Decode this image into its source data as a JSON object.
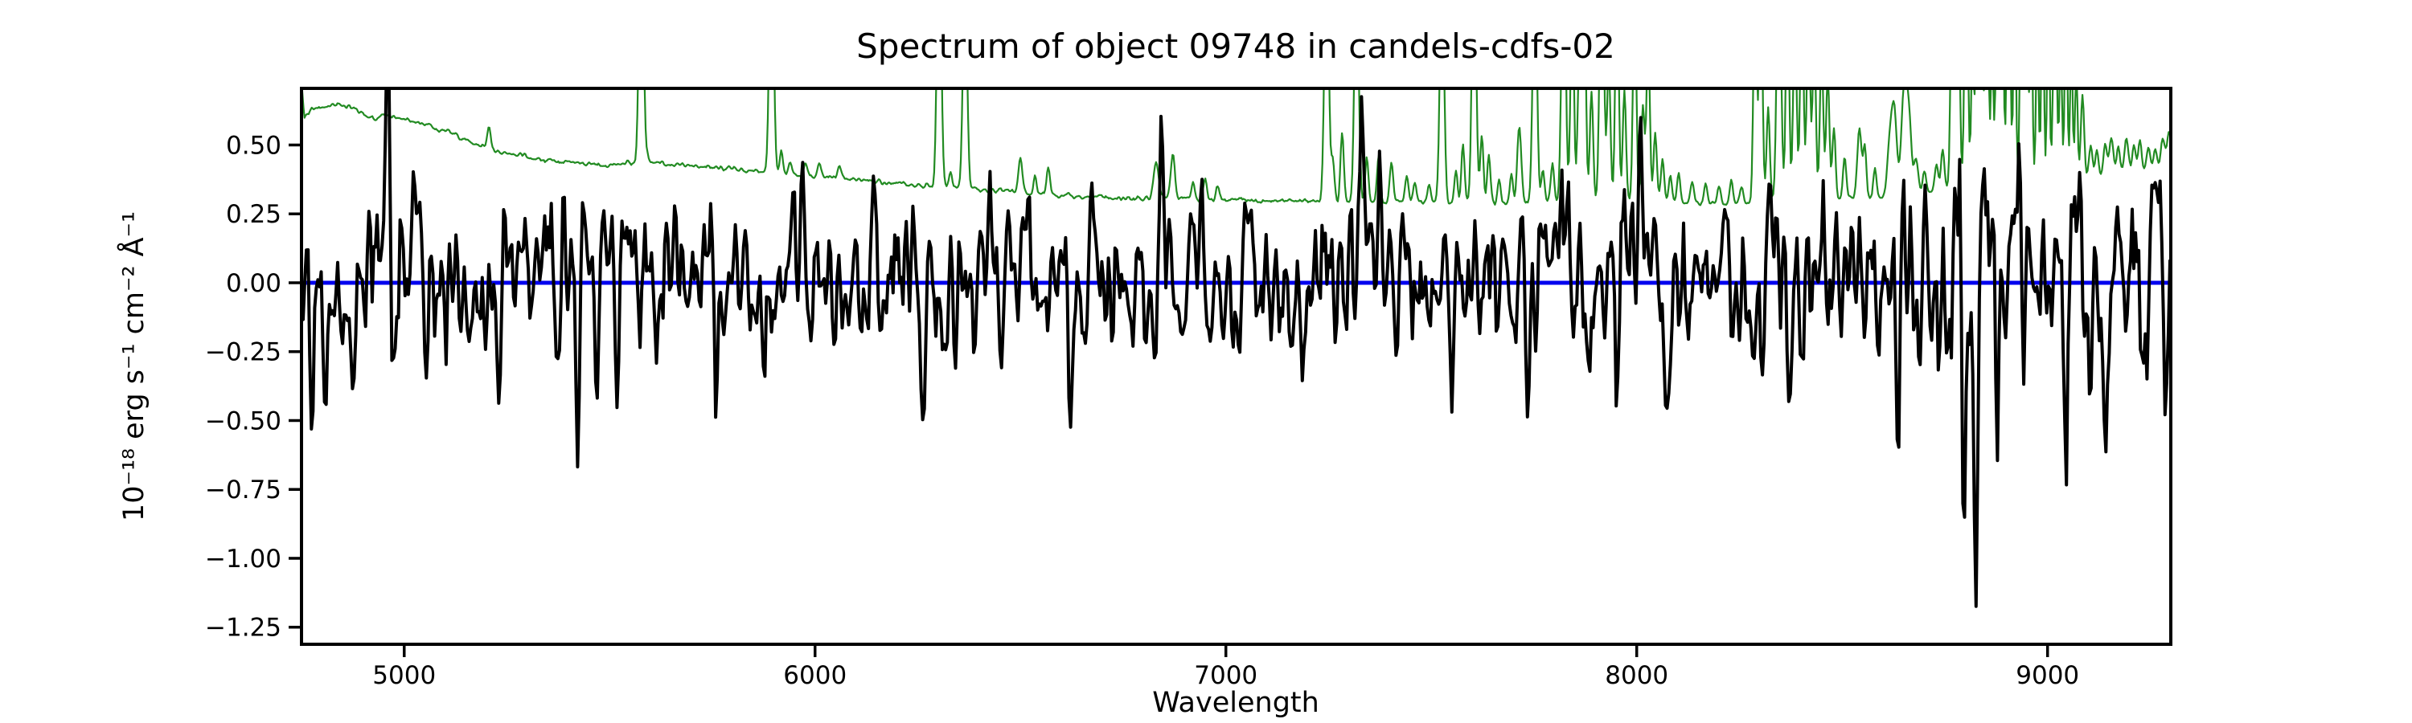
{
  "chart_data": {
    "type": "line",
    "title": "Spectrum of object 09748 in candels-cdfs-02",
    "xlabel": "Wavelength",
    "ylabel": "10⁻¹⁸ erg s⁻¹ cm⁻² Å⁻¹",
    "xlim": [
      4750,
      9300
    ],
    "ylim": [
      -1.312,
      0.7055
    ],
    "grid": false,
    "x_ticks": {
      "values": [
        5000,
        6000,
        7000,
        8000,
        9000
      ],
      "labels": [
        "5000",
        "6000",
        "7000",
        "8000",
        "9000"
      ]
    },
    "y_ticks": {
      "values": [
        0.5,
        0.25,
        0.0,
        -0.25,
        -0.5,
        -0.75,
        -1.0,
        -1.25
      ],
      "labels": [
        "0.50",
        "0.25",
        "0.00",
        "−0.25",
        "−0.50",
        "−0.75",
        "−1.00",
        "−1.25"
      ]
    },
    "series": [
      {
        "name": "zero-model-line",
        "type": "hline",
        "color": "#0000ee",
        "linewidth": 5,
        "y": 0.0
      },
      {
        "name": "error-sky-spectrum",
        "type": "continuum-plus-spikes",
        "color": "#228B22",
        "linewidth": 2.2,
        "sample_step": 2.5,
        "jitter": {
          "seed": 7,
          "std": 0.007
        },
        "continuum": [
          [
            4750,
            0.72
          ],
          [
            4757,
            0.6
          ],
          [
            4770,
            0.625
          ],
          [
            4800,
            0.635
          ],
          [
            4840,
            0.648
          ],
          [
            4880,
            0.628
          ],
          [
            4915,
            0.605
          ],
          [
            4925,
            0.588
          ],
          [
            4945,
            0.612
          ],
          [
            4980,
            0.6
          ],
          [
            5020,
            0.588
          ],
          [
            5060,
            0.572
          ],
          [
            5100,
            0.552
          ],
          [
            5150,
            0.52
          ],
          [
            5200,
            0.492
          ],
          [
            5260,
            0.468
          ],
          [
            5320,
            0.452
          ],
          [
            5380,
            0.442
          ],
          [
            5440,
            0.432
          ],
          [
            5500,
            0.425
          ],
          [
            5560,
            0.438
          ],
          [
            5600,
            0.432
          ],
          [
            5650,
            0.428
          ],
          [
            5700,
            0.425
          ],
          [
            5760,
            0.418
          ],
          [
            5820,
            0.41
          ],
          [
            5880,
            0.402
          ],
          [
            5940,
            0.393
          ],
          [
            6000,
            0.388
          ],
          [
            6060,
            0.38
          ],
          [
            6120,
            0.372
          ],
          [
            6180,
            0.363
          ],
          [
            6240,
            0.355
          ],
          [
            6300,
            0.348
          ],
          [
            6360,
            0.342
          ],
          [
            6420,
            0.336
          ],
          [
            6480,
            0.33
          ],
          [
            6540,
            0.324
          ],
          [
            6600,
            0.318
          ],
          [
            6660,
            0.312
          ],
          [
            6720,
            0.308
          ],
          [
            6780,
            0.306
          ],
          [
            6840,
            0.306
          ],
          [
            6900,
            0.304
          ],
          [
            6960,
            0.301
          ],
          [
            7020,
            0.299
          ],
          [
            7080,
            0.298
          ],
          [
            7140,
            0.297
          ],
          [
            7200,
            0.297
          ],
          [
            7260,
            0.297
          ],
          [
            7320,
            0.296
          ],
          [
            7380,
            0.294
          ],
          [
            7440,
            0.291
          ],
          [
            7500,
            0.288
          ],
          [
            7560,
            0.287
          ],
          [
            7620,
            0.287
          ],
          [
            7680,
            0.288
          ],
          [
            7740,
            0.29
          ],
          [
            7800,
            0.293
          ],
          [
            7860,
            0.295
          ],
          [
            7920,
            0.296
          ],
          [
            7980,
            0.296
          ],
          [
            8040,
            0.294
          ],
          [
            8100,
            0.292
          ],
          [
            8160,
            0.29
          ],
          [
            8220,
            0.289
          ],
          [
            8280,
            0.29
          ],
          [
            8340,
            0.293
          ],
          [
            8400,
            0.298
          ],
          [
            8460,
            0.302
          ],
          [
            8520,
            0.306
          ],
          [
            8580,
            0.312
          ],
          [
            8640,
            0.32
          ],
          [
            8700,
            0.33
          ],
          [
            8760,
            0.34
          ],
          [
            8820,
            0.35
          ],
          [
            8880,
            0.358
          ],
          [
            8940,
            0.365
          ],
          [
            9000,
            0.372
          ],
          [
            9060,
            0.378
          ],
          [
            9120,
            0.385
          ],
          [
            9180,
            0.395
          ],
          [
            9240,
            0.408
          ],
          [
            9270,
            0.428
          ],
          [
            9300,
            0.5
          ]
        ],
        "spikes": [
          [
            5206,
            0.08,
            4
          ],
          [
            5577,
            1.0,
            5
          ],
          [
            5592,
            0.03,
            4
          ],
          [
            5894,
            1.0,
            5
          ],
          [
            5918,
            0.08,
            4
          ],
          [
            5940,
            0.05,
            4
          ],
          [
            5976,
            0.04,
            4
          ],
          [
            6010,
            0.05,
            4
          ],
          [
            6060,
            0.04,
            4
          ],
          [
            6302,
            1.0,
            5
          ],
          [
            6330,
            0.06,
            4
          ],
          [
            6365,
            0.8,
            5
          ],
          [
            6500,
            0.12,
            5
          ],
          [
            6535,
            0.07,
            4
          ],
          [
            6568,
            0.1,
            4
          ],
          [
            6830,
            0.13,
            6
          ],
          [
            6871,
            0.16,
            5
          ],
          [
            6920,
            0.06,
            4
          ],
          [
            6950,
            0.07,
            4
          ],
          [
            6980,
            0.05,
            4
          ],
          [
            7245,
            1.0,
            5
          ],
          [
            7260,
            0.15,
            4
          ],
          [
            7283,
            0.25,
            4
          ],
          [
            7318,
            0.9,
            5
          ],
          [
            7343,
            0.16,
            4
          ],
          [
            7372,
            0.17,
            4
          ],
          [
            7403,
            0.14,
            4
          ],
          [
            7440,
            0.1,
            4
          ],
          [
            7460,
            0.08,
            4
          ],
          [
            7495,
            0.07,
            4
          ],
          [
            7526,
            0.9,
            5
          ],
          [
            7560,
            0.12,
            4
          ],
          [
            7577,
            0.22,
            4
          ],
          [
            7604,
            1.0,
            5
          ],
          [
            7623,
            0.25,
            4
          ],
          [
            7640,
            0.18,
            4
          ],
          [
            7665,
            0.08,
            4
          ],
          [
            7695,
            0.1,
            4
          ],
          [
            7714,
            0.28,
            5
          ],
          [
            7752,
            0.9,
            5
          ],
          [
            7772,
            0.12,
            4
          ],
          [
            7795,
            0.15,
            4
          ],
          [
            7822,
            1.0,
            5
          ],
          [
            7843,
            0.8,
            4
          ],
          [
            7860,
            0.5,
            4
          ],
          [
            7872,
            0.9,
            4
          ],
          [
            7890,
            0.4,
            4
          ],
          [
            7915,
            1.0,
            5
          ],
          [
            7932,
            0.5,
            4
          ],
          [
            7952,
            0.9,
            4
          ],
          [
            7970,
            0.4,
            4
          ],
          [
            7995,
            0.8,
            4
          ],
          [
            8015,
            0.35,
            4
          ],
          [
            8028,
            0.6,
            4
          ],
          [
            8045,
            0.25,
            4
          ],
          [
            8063,
            0.15,
            4
          ],
          [
            8082,
            0.1,
            4
          ],
          [
            8102,
            0.1,
            4
          ],
          [
            8135,
            0.08,
            4
          ],
          [
            8168,
            0.07,
            4
          ],
          [
            8200,
            0.06,
            4
          ],
          [
            8230,
            0.08,
            4
          ],
          [
            8255,
            0.06,
            4
          ],
          [
            8288,
            0.8,
            4
          ],
          [
            8302,
            0.9,
            4
          ],
          [
            8320,
            0.35,
            4
          ],
          [
            8346,
            1.0,
            5
          ],
          [
            8367,
            0.8,
            4
          ],
          [
            8385,
            0.7,
            4
          ],
          [
            8402,
            0.8,
            4
          ],
          [
            8418,
            0.7,
            4
          ],
          [
            8432,
            0.6,
            4
          ],
          [
            8450,
            0.55,
            4
          ],
          [
            8465,
            0.45,
            4
          ],
          [
            8480,
            0.25,
            4
          ],
          [
            8506,
            0.15,
            4
          ],
          [
            8542,
            0.25,
            5
          ],
          [
            8555,
            0.18,
            4
          ],
          [
            8580,
            0.1,
            4
          ],
          [
            8616,
            0.18,
            6
          ],
          [
            8627,
            0.3,
            6
          ],
          [
            8650,
            0.36,
            6
          ],
          [
            8662,
            0.3,
            6
          ],
          [
            8680,
            0.12,
            5
          ],
          [
            8700,
            0.08,
            4
          ],
          [
            8730,
            0.1,
            4
          ],
          [
            8745,
            0.15,
            4
          ],
          [
            8768,
            0.8,
            4
          ],
          [
            8782,
            0.9,
            4
          ],
          [
            8802,
            1.0,
            4
          ],
          [
            8817,
            0.5,
            3
          ],
          [
            8829,
            0.9,
            4
          ],
          [
            8840,
            0.6,
            3
          ],
          [
            8852,
            0.9,
            4
          ],
          [
            8865,
            0.5,
            3
          ],
          [
            8878,
            0.8,
            4
          ],
          [
            8890,
            0.9,
            3
          ],
          [
            8905,
            1.0,
            4
          ],
          [
            8920,
            0.8,
            3
          ],
          [
            8935,
            0.6,
            3
          ],
          [
            8947,
            0.9,
            4
          ],
          [
            8960,
            0.8,
            3
          ],
          [
            8975,
            0.6,
            3
          ],
          [
            8988,
            0.8,
            3
          ],
          [
            9002,
            0.7,
            3
          ],
          [
            9018,
            0.8,
            4
          ],
          [
            9032,
            0.5,
            3
          ],
          [
            9045,
            0.7,
            3
          ],
          [
            9058,
            0.5,
            3
          ],
          [
            9070,
            0.4,
            3
          ],
          [
            9085,
            0.3,
            4
          ],
          [
            9105,
            0.12,
            4
          ],
          [
            9120,
            0.1,
            4
          ],
          [
            9140,
            0.12,
            4
          ],
          [
            9155,
            0.14,
            5
          ],
          [
            9172,
            0.1,
            4
          ],
          [
            9192,
            0.13,
            5
          ],
          [
            9210,
            0.1,
            4
          ],
          [
            9225,
            0.12,
            4
          ],
          [
            9245,
            0.08,
            4
          ],
          [
            9262,
            0.06,
            4
          ],
          [
            9280,
            0.07,
            4
          ],
          [
            9295,
            0.06,
            4
          ]
        ]
      },
      {
        "name": "object-flux-spectrum",
        "type": "noise-plus-features",
        "color": "#000000",
        "linewidth": 4,
        "mean": 0.0,
        "sample_step": 4,
        "noise": {
          "seed": 99,
          "smooth": [
            0.3,
            0.4,
            0.3
          ],
          "std_segments": [
            [
              4750,
              5000,
              0.2
            ],
            [
              5000,
              5600,
              0.17
            ],
            [
              5600,
              7000,
              0.15
            ],
            [
              7000,
              8200,
              0.165
            ],
            [
              8200,
              8700,
              0.19
            ],
            [
              8700,
              9300,
              0.21
            ]
          ]
        },
        "features": [
          [
            4758,
            -0.4,
            5
          ],
          [
            4775,
            -0.72,
            4
          ],
          [
            4805,
            -0.3,
            5
          ],
          [
            4873,
            -0.42,
            4
          ],
          [
            4961,
            0.58,
            4
          ],
          [
            5022,
            0.25,
            4
          ],
          [
            5053,
            -0.4,
            4
          ],
          [
            5206,
            0.28,
            4
          ],
          [
            5386,
            0.3,
            4
          ],
          [
            5421,
            -0.55,
            4
          ],
          [
            5470,
            -0.35,
            4
          ],
          [
            5522,
            -0.42,
            4
          ],
          [
            5540,
            0.38,
            4
          ],
          [
            5760,
            -0.35,
            4
          ],
          [
            5990,
            -0.3,
            4
          ],
          [
            6160,
            -0.35,
            5
          ],
          [
            6520,
            0.3,
            4
          ],
          [
            6620,
            -0.3,
            4
          ],
          [
            6842,
            0.3,
            4
          ],
          [
            7090,
            -0.3,
            4
          ],
          [
            7330,
            0.4,
            4
          ],
          [
            7375,
            0.3,
            4
          ],
          [
            7550,
            -0.35,
            4
          ],
          [
            7818,
            0.55,
            4
          ],
          [
            7860,
            0.25,
            4
          ],
          [
            8010,
            0.3,
            4
          ],
          [
            8230,
            -0.35,
            4
          ],
          [
            8455,
            0.4,
            4
          ],
          [
            8540,
            0.35,
            4
          ],
          [
            8786,
            0.45,
            4
          ],
          [
            8795,
            -0.9,
            5
          ],
          [
            8826,
            -1.1,
            5
          ],
          [
            8878,
            -0.7,
            4
          ],
          [
            8940,
            -0.5,
            4
          ],
          [
            9105,
            -0.45,
            4
          ],
          [
            9140,
            -0.4,
            4
          ],
          [
            9190,
            -0.45,
            4
          ]
        ]
      }
    ]
  }
}
